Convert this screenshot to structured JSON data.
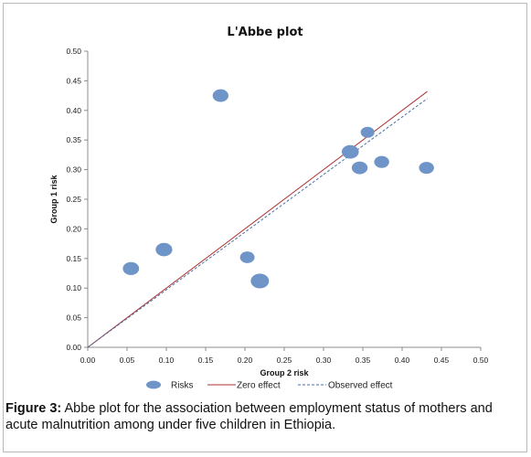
{
  "chart_data": {
    "type": "scatter",
    "title": "L'Abbe plot",
    "xlabel": "Group  2 risk",
    "ylabel": "Group  1 risk",
    "xlim": [
      0,
      0.5
    ],
    "ylim": [
      0,
      0.5
    ],
    "xticks": [
      "0.00",
      "0.05",
      "0.10",
      "0.15",
      "0.20",
      "0.25",
      "0.30",
      "0.35",
      "0.40",
      "0.45",
      "0.50"
    ],
    "yticks": [
      "0.00",
      "0.05",
      "0.10",
      "0.15",
      "0.20",
      "0.25",
      "0.30",
      "0.35",
      "0.40",
      "0.45",
      "0.50"
    ],
    "grid": false,
    "legend_position": "bottom",
    "series": [
      {
        "name": "Risks",
        "color": "#6f95c8",
        "points": [
          {
            "x": 0.055,
            "y": 0.133,
            "weight": 0.75
          },
          {
            "x": 0.097,
            "y": 0.165,
            "weight": 0.8
          },
          {
            "x": 0.169,
            "y": 0.425,
            "weight": 0.7
          },
          {
            "x": 0.203,
            "y": 0.152,
            "weight": 0.55
          },
          {
            "x": 0.219,
            "y": 0.112,
            "weight": 1.0
          },
          {
            "x": 0.334,
            "y": 0.33,
            "weight": 0.85
          },
          {
            "x": 0.346,
            "y": 0.303,
            "weight": 0.7
          },
          {
            "x": 0.356,
            "y": 0.363,
            "weight": 0.45
          },
          {
            "x": 0.374,
            "y": 0.313,
            "weight": 0.6
          },
          {
            "x": 0.431,
            "y": 0.303,
            "weight": 0.6
          }
        ]
      },
      {
        "name": "Zero effect",
        "type": "line",
        "color": "#b03030",
        "style": "solid",
        "x": [
          0,
          0.432
        ],
        "y": [
          0,
          0.432
        ]
      },
      {
        "name": "Observed effect",
        "type": "line",
        "color": "#4a6fa5",
        "style": "dashed",
        "x": [
          0,
          0.432
        ],
        "y": [
          0,
          0.42
        ]
      }
    ]
  },
  "caption": {
    "label": "Figure 3:",
    "text": " Abbe plot for the association between employment status of mothers and acute malnutrition among under five children in Ethiopia."
  }
}
